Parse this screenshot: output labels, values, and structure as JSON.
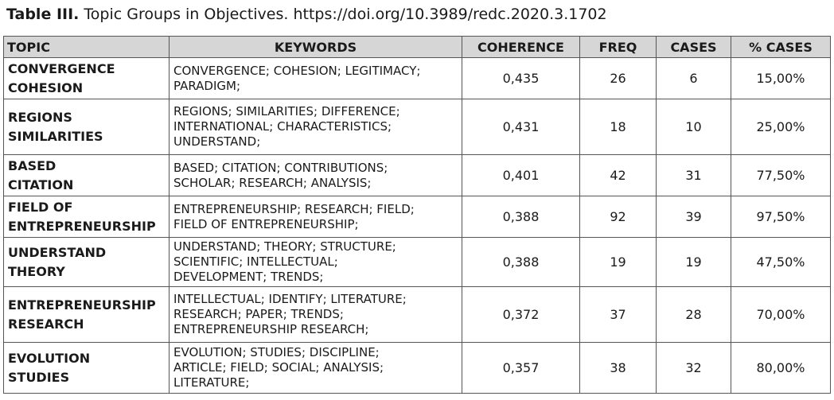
{
  "caption": {
    "label": "Table III.",
    "text": " Topic Groups in Objectives. https://doi.org/10.3989/redc.2020.3.1702"
  },
  "table": {
    "headers": [
      "TOPIC",
      "KEYWORDS",
      "COHERENCE",
      "FREQ",
      "CASES",
      "% CASES"
    ],
    "rows": [
      {
        "topic": [
          "CONVERGENCE",
          "COHESION"
        ],
        "keywords": [
          "CONVERGENCE; COHESION; LEGITIMACY;",
          "PARADIGM;"
        ],
        "coherence": "0,435",
        "freq": "26",
        "cases": "6",
        "pct": "15,00%"
      },
      {
        "topic": [
          "REGIONS",
          "SIMILARITIES"
        ],
        "keywords": [
          "REGIONS; SIMILARITIES; DIFFERENCE;",
          "INTERNATIONAL; CHARACTERISTICS;",
          "UNDERSTAND;"
        ],
        "coherence": "0,431",
        "freq": "18",
        "cases": "10",
        "pct": "25,00%"
      },
      {
        "topic": [
          "BASED",
          "CITATION"
        ],
        "keywords": [
          "BASED; CITATION; CONTRIBUTIONS;",
          "SCHOLAR; RESEARCH; ANALYSIS;"
        ],
        "coherence": "0,401",
        "freq": "42",
        "cases": "31",
        "pct": "77,50%"
      },
      {
        "topic": [
          "FIELD OF",
          "ENTREPRENEURSHIP"
        ],
        "keywords": [
          "ENTREPRENEURSHIP; RESEARCH; FIELD;",
          "FIELD OF ENTREPRENEURSHIP;"
        ],
        "coherence": "0,388",
        "freq": "92",
        "cases": "39",
        "pct": "97,50%"
      },
      {
        "topic": [
          "UNDERSTAND",
          "THEORY"
        ],
        "keywords": [
          "UNDERSTAND; THEORY; STRUCTURE;",
          "SCIENTIFIC; INTELLECTUAL;",
          "DEVELOPMENT; TRENDS;"
        ],
        "coherence": "0,388",
        "freq": "19",
        "cases": "19",
        "pct": "47,50%"
      },
      {
        "topic": [
          "ENTREPRENEURSHIP",
          "RESEARCH"
        ],
        "keywords": [
          "INTELLECTUAL; IDENTIFY; LITERATURE;",
          "RESEARCH; PAPER; TRENDS;",
          "ENTREPRENEURSHIP RESEARCH;"
        ],
        "coherence": "0,372",
        "freq": "37",
        "cases": "28",
        "pct": "70,00%"
      },
      {
        "topic": [
          "EVOLUTION",
          "STUDIES"
        ],
        "keywords": [
          "EVOLUTION; STUDIES; DISCIPLINE;",
          "ARTICLE; FIELD; SOCIAL; ANALYSIS;",
          "LITERATURE;"
        ],
        "coherence": "0,357",
        "freq": "38",
        "cases": "32",
        "pct": "80,00%"
      }
    ]
  }
}
